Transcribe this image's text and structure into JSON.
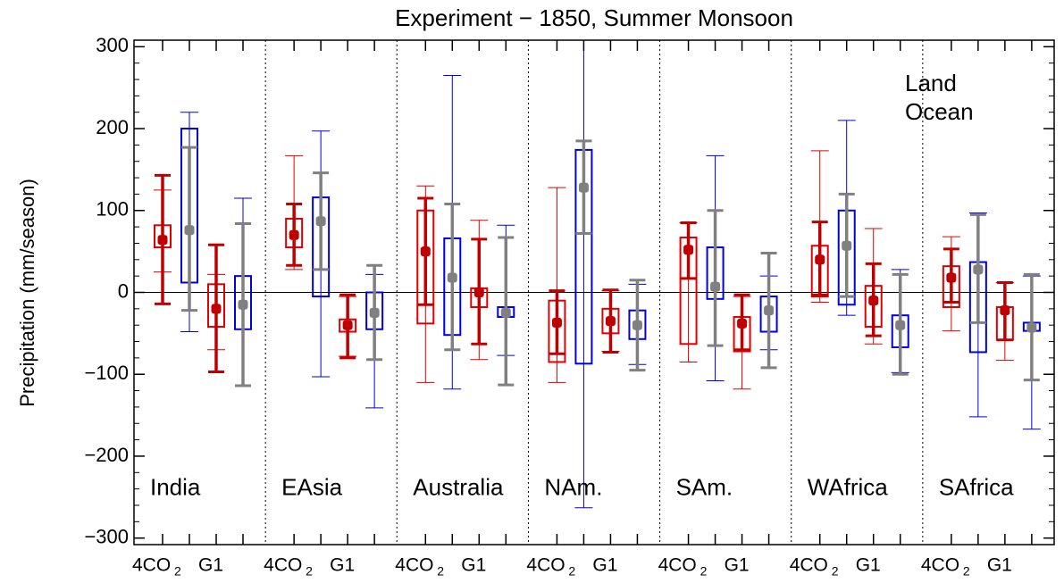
{
  "chart_data": {
    "type": "box",
    "title": "Experiment − 1850, Summer Monsoon",
    "y_label": "Precipitation (mm/season)",
    "ylim": [
      -308,
      308
    ],
    "yticks": [
      {
        "value": -300,
        "label": "−300"
      },
      {
        "value": -200,
        "label": "−200"
      },
      {
        "value": -100,
        "label": "−100"
      },
      0,
      100,
      200,
      300
    ],
    "series": [
      {
        "name": "Land",
        "color": "#e00000",
        "range_color": "#c00000"
      },
      {
        "name": "Ocean",
        "color": "#0000e0",
        "range_color": "#808080"
      }
    ],
    "groups": [
      {
        "name": "4CO",
        "sub": "2"
      },
      {
        "name": "G1"
      }
    ],
    "regions": [
      {
        "name": "India",
        "boxes": [
          {
            "min": 25,
            "max": 125,
            "q1": 55,
            "q3": 82,
            "lo": -14,
            "hi": 143,
            "mean": 64
          },
          {
            "min": -48,
            "max": 220,
            "q1": 12,
            "q3": 200,
            "lo": -22,
            "hi": 177,
            "mean": 76
          },
          {
            "min": -70,
            "max": 22,
            "q1": -42,
            "q3": 10,
            "lo": -97,
            "hi": 58,
            "mean": -20
          },
          {
            "min": -45,
            "max": 115,
            "q1": -45,
            "q3": 20,
            "lo": -114,
            "hi": 84,
            "mean": -15
          }
        ]
      },
      {
        "name": "EAsia",
        "boxes": [
          {
            "min": 28,
            "max": 167,
            "q1": 55,
            "q3": 90,
            "lo": 33,
            "hi": 108,
            "mean": 70
          },
          {
            "min": -103,
            "max": 197,
            "q1": -5,
            "q3": 116,
            "lo": 28,
            "hi": 146,
            "mean": 87
          },
          {
            "min": -78,
            "max": -5,
            "q1": -48,
            "q3": -33,
            "lo": -80,
            "hi": -3,
            "mean": -40
          },
          {
            "min": -141,
            "max": 22,
            "q1": -45,
            "q3": 0,
            "lo": -82,
            "hi": 33,
            "mean": -25
          }
        ]
      },
      {
        "name": "Australia",
        "boxes": [
          {
            "min": -110,
            "max": 130,
            "q1": -38,
            "q3": 100,
            "lo": -15,
            "hi": 115,
            "mean": 50
          },
          {
            "min": -118,
            "max": 265,
            "q1": -52,
            "q3": 66,
            "lo": -70,
            "hi": 108,
            "mean": 18
          },
          {
            "min": -82,
            "max": 88,
            "q1": -18,
            "q3": 5,
            "lo": -63,
            "hi": 65,
            "mean": 0
          },
          {
            "min": -77,
            "max": 82,
            "q1": -30,
            "q3": -18,
            "lo": -113,
            "hi": 67,
            "mean": -25
          }
        ]
      },
      {
        "name": "NAm.",
        "boxes": [
          {
            "min": -110,
            "max": 128,
            "q1": -85,
            "q3": -10,
            "lo": -75,
            "hi": 2,
            "mean": -37
          },
          {
            "min": -263,
            "max": 320,
            "q1": -87,
            "q3": 174,
            "lo": 72,
            "hi": 185,
            "mean": 128
          },
          {
            "min": -72,
            "max": 2,
            "q1": -50,
            "q3": -20,
            "lo": -73,
            "hi": 3,
            "mean": -35
          },
          {
            "min": -88,
            "max": 10,
            "q1": -57,
            "q3": -22,
            "lo": -95,
            "hi": 15,
            "mean": -40
          }
        ]
      },
      {
        "name": "SAm.",
        "boxes": [
          {
            "min": -85,
            "max": 85,
            "q1": -63,
            "q3": 67,
            "lo": 17,
            "hi": 85,
            "mean": 52
          },
          {
            "min": -108,
            "max": 167,
            "q1": -8,
            "q3": 55,
            "lo": -65,
            "hi": 100,
            "mean": 7
          },
          {
            "min": -118,
            "max": -5,
            "q1": -72,
            "q3": -30,
            "lo": -70,
            "hi": -3,
            "mean": -38
          },
          {
            "min": -70,
            "max": 20,
            "q1": -48,
            "q3": -5,
            "lo": -92,
            "hi": 48,
            "mean": -22
          }
        ]
      },
      {
        "name": "WAfrica",
        "boxes": [
          {
            "min": -12,
            "max": 173,
            "q1": -5,
            "q3": 57,
            "lo": -3,
            "hi": 86,
            "mean": 40
          },
          {
            "min": -28,
            "max": 210,
            "q1": -15,
            "q3": 100,
            "lo": -5,
            "hi": 120,
            "mean": 57
          },
          {
            "min": -63,
            "max": 78,
            "q1": -42,
            "q3": 8,
            "lo": -53,
            "hi": 35,
            "mean": -10
          },
          {
            "min": -98,
            "max": 28,
            "q1": -67,
            "q3": -28,
            "lo": -100,
            "hi": 22,
            "mean": -40
          }
        ]
      },
      {
        "name": "SAfrica",
        "boxes": [
          {
            "min": -47,
            "max": 68,
            "q1": -18,
            "q3": 32,
            "lo": -12,
            "hi": 53,
            "mean": 18
          },
          {
            "min": -152,
            "max": 97,
            "q1": -73,
            "q3": 37,
            "lo": -37,
            "hi": 95,
            "mean": 28
          },
          {
            "min": -83,
            "max": 12,
            "q1": -58,
            "q3": -18,
            "lo": -58,
            "hi": 12,
            "mean": -22
          },
          {
            "min": -167,
            "max": 20,
            "q1": -47,
            "q3": -37,
            "lo": -107,
            "hi": 22,
            "mean": -43
          }
        ]
      }
    ]
  }
}
